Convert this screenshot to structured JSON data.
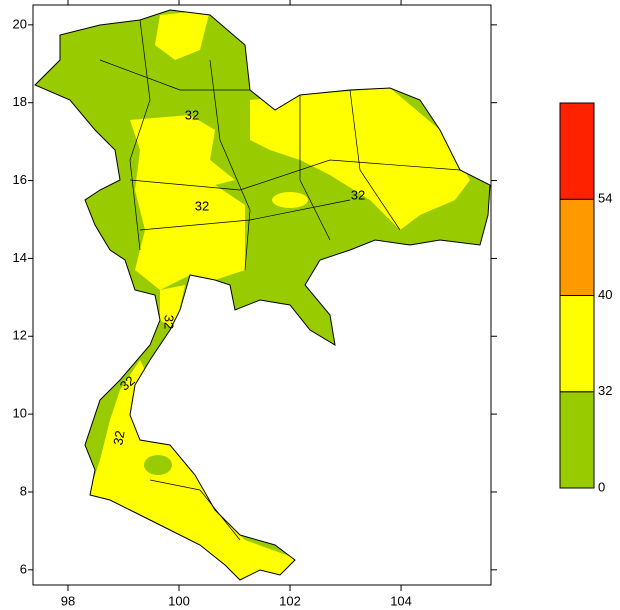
{
  "map": {
    "xlim": [
      97.37,
      105.62
    ],
    "ylim": [
      5.61,
      20.51
    ],
    "xticks": [
      98,
      100,
      102,
      104
    ],
    "yticks": [
      6,
      8,
      10,
      12,
      14,
      16,
      18,
      20
    ],
    "colorbar": {
      "levels": [
        0,
        32,
        40,
        54
      ],
      "colors": [
        "#99cc00",
        "#ffff00",
        "#ff9900",
        "#ff2200"
      ]
    },
    "contour_labels": [
      "32",
      "32",
      "32",
      "32",
      "32",
      "32"
    ]
  }
}
